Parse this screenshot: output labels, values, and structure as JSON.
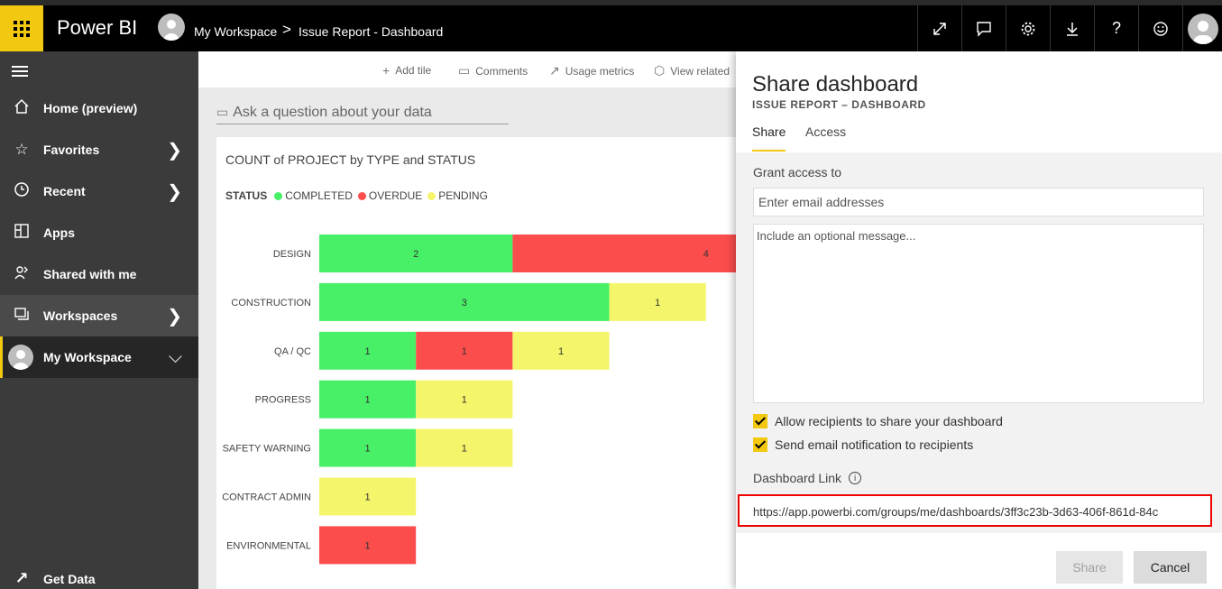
{
  "app": {
    "name": "Power BI"
  },
  "breadcrumb": {
    "workspace": "My Workspace",
    "separator": ">",
    "current": "Issue Report - Dashboard"
  },
  "top_icons": [
    "expand-icon",
    "comment-icon",
    "settings-icon",
    "download-icon",
    "help-icon",
    "feedback-icon",
    "profile-icon"
  ],
  "sidebar": {
    "items": [
      {
        "label": "Home (preview)",
        "icon": "home-icon"
      },
      {
        "label": "Favorites",
        "icon": "star-icon"
      },
      {
        "label": "Recent",
        "icon": "clock-icon"
      },
      {
        "label": "Apps",
        "icon": "apps-icon"
      },
      {
        "label": "Shared with me",
        "icon": "shared-icon"
      },
      {
        "label": "Workspaces",
        "icon": "workspaces-icon"
      },
      {
        "label": "My Workspace",
        "icon": "avatar"
      }
    ],
    "get_data": "Get Data"
  },
  "actions": {
    "add_tile": "Add tile",
    "comments": "Comments",
    "usage_metrics": "Usage metrics",
    "view_related": "View related"
  },
  "qna": {
    "placeholder": "Ask a question about your data"
  },
  "tile": {
    "title": "COUNT of PROJECT by TYPE and STATUS"
  },
  "colors": {
    "completed": "#47f066",
    "overdue": "#fc4d4d",
    "pending": "#f4f56a",
    "accent": "#f2c811"
  },
  "chart_data": {
    "type": "bar",
    "orientation": "horizontal",
    "stacked": true,
    "title": "COUNT of PROJECT by TYPE and STATUS",
    "legend_title": "STATUS",
    "categories": [
      "DESIGN",
      "CONSTRUCTION",
      "QA / QC",
      "PROGRESS",
      "SAFETY WARNING",
      "CONTRACT ADMIN",
      "ENVIRONMENTAL"
    ],
    "series": [
      {
        "name": "COMPLETED",
        "values": [
          2,
          3,
          1,
          1,
          1,
          0,
          0
        ]
      },
      {
        "name": "OVERDUE",
        "values": [
          4,
          0,
          1,
          0,
          0,
          0,
          1
        ]
      },
      {
        "name": "PENDING",
        "values": [
          0,
          1,
          1,
          1,
          1,
          1,
          0
        ]
      }
    ]
  },
  "share_panel": {
    "title": "Share dashboard",
    "subtitle": "ISSUE REPORT – DASHBOARD",
    "tabs": [
      "Share",
      "Access"
    ],
    "grant_label": "Grant access to",
    "email_placeholder": "Enter email addresses",
    "message_placeholder": "Include an optional message...",
    "allow_share_label": "Allow recipients to share your dashboard",
    "allow_share_checked": true,
    "send_email_label": "Send email notification to recipients",
    "send_email_checked": true,
    "link_label": "Dashboard Link",
    "link_value": "https://app.powerbi.com/groups/me/dashboards/3ff3c23b-3d63-406f-861d-84c",
    "share_button": "Share",
    "cancel_button": "Cancel"
  }
}
